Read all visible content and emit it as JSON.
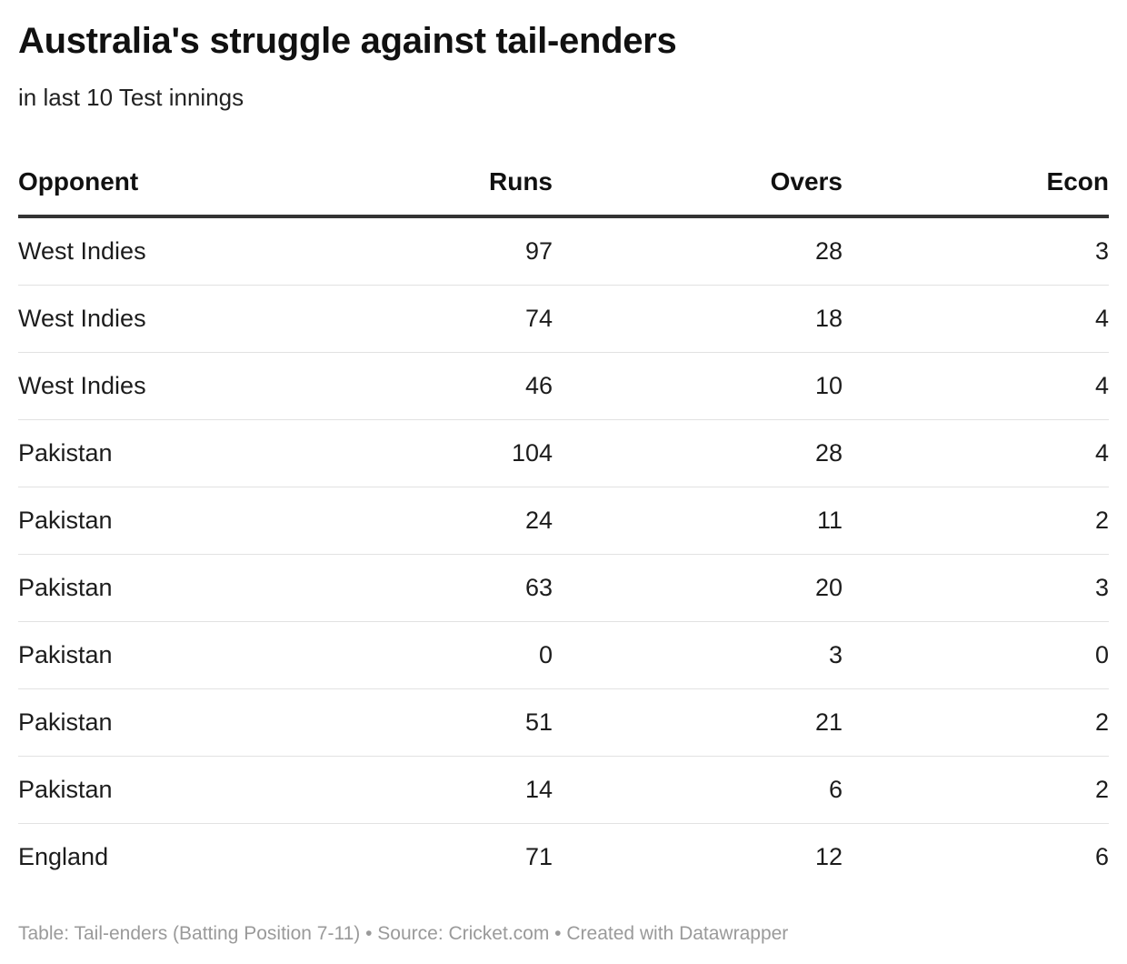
{
  "chart_data": {
    "type": "table",
    "title": "Australia's struggle against tail-enders",
    "subtitle": "in last 10 Test innings",
    "columns": [
      "Opponent",
      "Runs",
      "Overs",
      "Econ"
    ],
    "rows": [
      [
        "West Indies",
        "97",
        "28",
        "3"
      ],
      [
        "West Indies",
        "74",
        "18",
        "4"
      ],
      [
        "West Indies",
        "46",
        "10",
        "4"
      ],
      [
        "Pakistan",
        "104",
        "28",
        "4"
      ],
      [
        "Pakistan",
        "24",
        "11",
        "2"
      ],
      [
        "Pakistan",
        "63",
        "20",
        "3"
      ],
      [
        "Pakistan",
        "0",
        "3",
        "0"
      ],
      [
        "Pakistan",
        "51",
        "21",
        "2"
      ],
      [
        "Pakistan",
        "14",
        "6",
        "2"
      ],
      [
        "England",
        "71",
        "12",
        "6"
      ]
    ],
    "footer": "Table: Tail-enders (Batting Position 7-11) • Source: Cricket.com • Created with Datawrapper"
  }
}
